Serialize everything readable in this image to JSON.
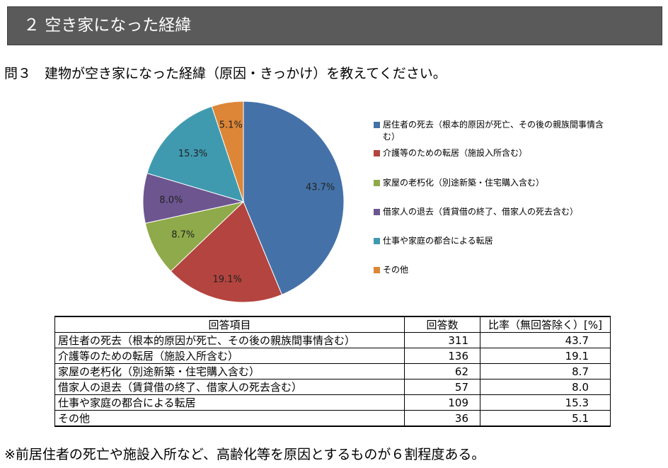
{
  "header": {
    "title": "２ 空き家になった経緯"
  },
  "question": "問３　建物が空き家になった経緯（原因・きっかけ）を教えてください。",
  "chart_data": {
    "type": "pie",
    "slices": [
      {
        "label": "居住者の死去（根本的原因が死亡、その後の親族間事情含む）",
        "value": 43.7,
        "display": "43.7%",
        "color": "#4472a8"
      },
      {
        "label": "介護等のための転居（施設入所含む）",
        "value": 19.1,
        "display": "19.1%",
        "color": "#b4443f"
      },
      {
        "label": "家屋の老朽化（別途新築・住宅購入含む）",
        "value": 8.7,
        "display": "8.7%",
        "color": "#8faa4a"
      },
      {
        "label": "借家人の退去（賃貸借の終了、借家人の死去含む）",
        "value": 8.0,
        "display": "8.0%",
        "color": "#6d5590"
      },
      {
        "label": "仕事や家庭の都合による転居",
        "value": 15.3,
        "display": "15.3%",
        "color": "#3f9ab0"
      },
      {
        "label": "その他",
        "value": 5.1,
        "display": "5.1%",
        "color": "#dd8637"
      }
    ],
    "legend_position": "right"
  },
  "table": {
    "headers": [
      "回答項目",
      "回答数",
      "比率（無回答除く）[%]"
    ],
    "rows": [
      {
        "item": "居住者の死去（根本的原因が死亡、その後の親族間事情含む）",
        "count": "311",
        "ratio": "43.7"
      },
      {
        "item": "介護等のための転居（施設入所含む）",
        "count": "136",
        "ratio": "19.1"
      },
      {
        "item": "家屋の老朽化（別途新築・住宅購入含む）",
        "count": "62",
        "ratio": "8.7"
      },
      {
        "item": "借家人の退去（賃貸借の終了、借家人の死去含む）",
        "count": "57",
        "ratio": "8.0"
      },
      {
        "item": "仕事や家庭の都合による転居",
        "count": "109",
        "ratio": "15.3"
      },
      {
        "item": "その他",
        "count": "36",
        "ratio": "5.1"
      }
    ]
  },
  "footnote": "※前居住者の死亡や施設入所など、高齢化等を原因とするものが６割程度ある。"
}
